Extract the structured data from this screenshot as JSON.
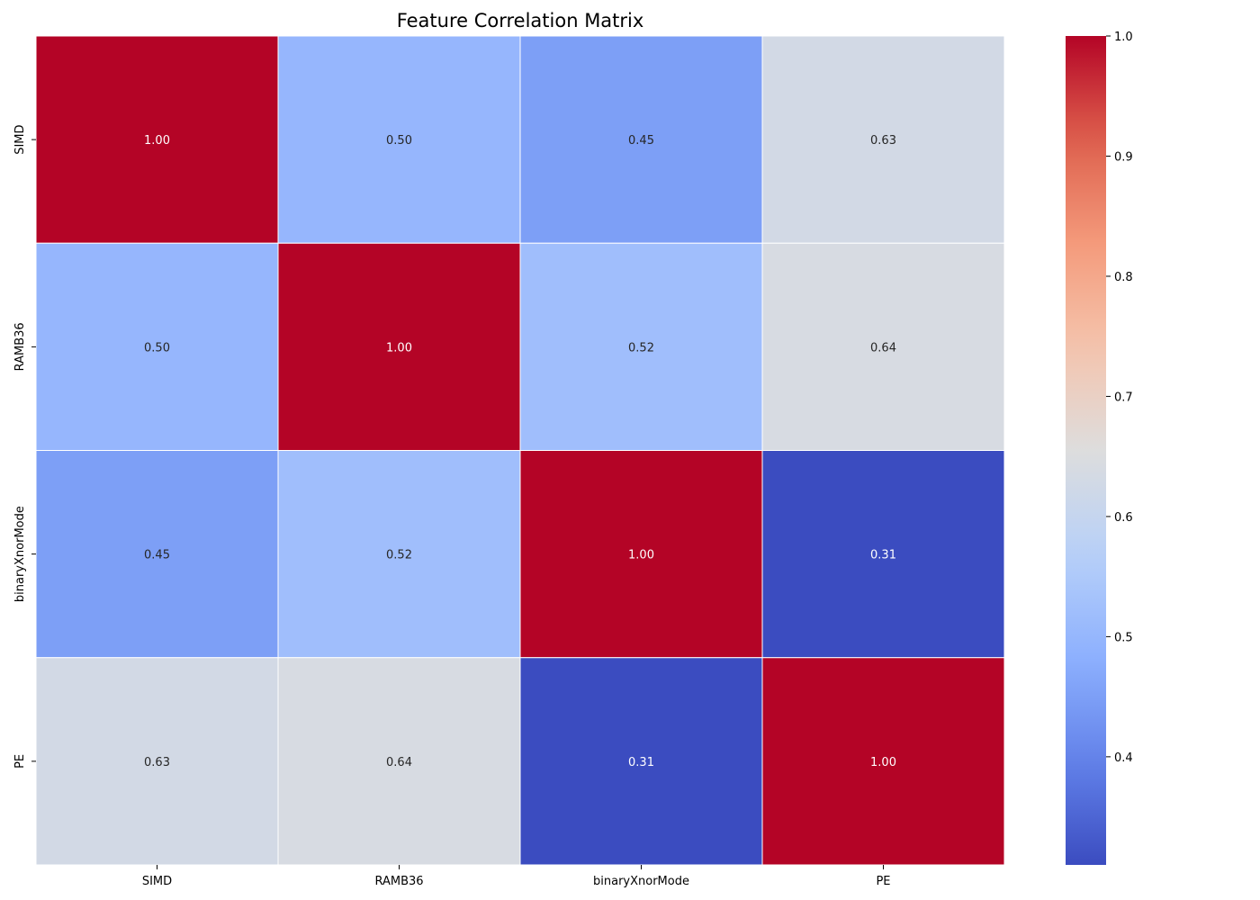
{
  "chart_data": {
    "type": "heatmap",
    "title": "Feature Correlation Matrix",
    "xlabel": "",
    "ylabel": "",
    "x_categories": [
      "SIMD",
      "RAMB36",
      "binaryXnorMode",
      "PE"
    ],
    "y_categories": [
      "SIMD",
      "RAMB36",
      "binaryXnorMode",
      "PE"
    ],
    "values": [
      [
        1.0,
        0.5,
        0.45,
        0.63
      ],
      [
        0.5,
        1.0,
        0.52,
        0.64
      ],
      [
        0.45,
        0.52,
        1.0,
        0.31
      ],
      [
        0.63,
        0.64,
        0.31,
        1.0
      ]
    ],
    "value_labels": [
      [
        "1.00",
        "0.50",
        "0.45",
        "0.63"
      ],
      [
        "0.50",
        "1.00",
        "0.52",
        "0.64"
      ],
      [
        "0.45",
        "0.52",
        "1.00",
        "0.31"
      ],
      [
        "0.63",
        "0.64",
        "0.31",
        "1.00"
      ]
    ],
    "colormap": "coolwarm",
    "colorbar": {
      "range": [
        0.31,
        1.0
      ],
      "ticks": [
        0.4,
        0.5,
        0.6,
        0.7,
        0.8,
        0.9,
        1.0
      ],
      "tick_labels": [
        "0.4",
        "0.5",
        "0.6",
        "0.7",
        "0.8",
        "0.9",
        "1.0"
      ],
      "placement": "right"
    },
    "grid": false
  }
}
